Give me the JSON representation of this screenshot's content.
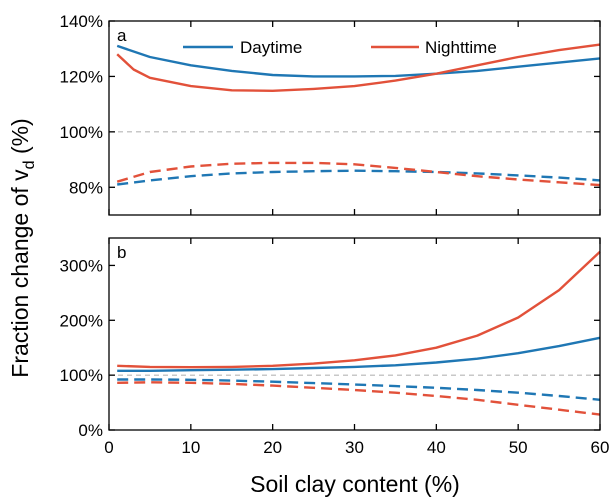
{
  "chart_data": {
    "type": "line",
    "xlabel": "Soil clay content (%)",
    "ylabel": "Fraction change of v",
    "ylabel_subscript": "d",
    "ylabel_suffix": " (%)",
    "x_ticks": [
      0,
      10,
      20,
      30,
      40,
      50,
      60
    ],
    "xlim": [
      0,
      60
    ],
    "colors": {
      "daytime": "#1f77b4",
      "nighttime": "#e2513a",
      "reference": "#b5b5b5"
    },
    "legend": {
      "placement": "top-center",
      "entries": [
        {
          "name": "Daytime",
          "color": "#1f77b4"
        },
        {
          "name": "Nighttime",
          "color": "#e2513a"
        }
      ]
    },
    "panels": [
      {
        "label": "a",
        "ylim": [
          70,
          140
        ],
        "y_ticks": [
          80,
          100,
          120,
          140
        ],
        "y_tick_labels": [
          "80%",
          "100%",
          "120%",
          "140%"
        ],
        "reference_y": 100,
        "series": [
          {
            "name": "Daytime",
            "style": "solid",
            "color": "#1f77b4",
            "x": [
              1,
              5,
              10,
              15,
              20,
              25,
              30,
              35,
              40,
              45,
              50,
              55,
              60
            ],
            "y": [
              131,
              127,
              124,
              122,
              120.5,
              120,
              120,
              120.2,
              121,
              122,
              123.5,
              125,
              126.5
            ]
          },
          {
            "name": "Nighttime",
            "style": "solid",
            "color": "#e2513a",
            "x": [
              1,
              3,
              5,
              10,
              15,
              20,
              25,
              30,
              35,
              40,
              45,
              50,
              55,
              60
            ],
            "y": [
              128,
              122.5,
              119.5,
              116.5,
              115,
              114.8,
              115.5,
              116.5,
              118.5,
              121,
              124,
              127,
              129.5,
              131.5
            ]
          },
          {
            "name": "Daytime",
            "style": "dashed",
            "color": "#1f77b4",
            "x": [
              1,
              5,
              10,
              15,
              20,
              25,
              30,
              35,
              40,
              45,
              50,
              55,
              60
            ],
            "y": [
              81,
              82.5,
              84,
              85,
              85.5,
              85.8,
              86,
              85.8,
              85.5,
              85,
              84.3,
              83.5,
              82.5
            ]
          },
          {
            "name": "Nighttime",
            "style": "dashed",
            "color": "#e2513a",
            "x": [
              1,
              5,
              10,
              15,
              20,
              25,
              30,
              35,
              40,
              45,
              50,
              55,
              60
            ],
            "y": [
              82,
              85.5,
              87.5,
              88.5,
              88.8,
              88.8,
              88.3,
              87,
              85.5,
              84,
              82.8,
              81.8,
              80.8
            ]
          }
        ]
      },
      {
        "label": "b",
        "ylim": [
          0,
          350
        ],
        "y_ticks": [
          0,
          100,
          200,
          300
        ],
        "y_tick_labels": [
          "0%",
          "100%",
          "200%",
          "300%"
        ],
        "reference_y": 100,
        "series": [
          {
            "name": "Daytime",
            "style": "solid",
            "color": "#1f77b4",
            "x": [
              1,
              5,
              10,
              15,
              20,
              25,
              30,
              35,
              40,
              45,
              50,
              55,
              60
            ],
            "y": [
              108,
              108,
              109,
              110,
              111,
              113,
              115,
              118,
              123,
              130,
              140,
              153,
              168
            ]
          },
          {
            "name": "Nighttime",
            "style": "solid",
            "color": "#e2513a",
            "x": [
              1,
              5,
              10,
              15,
              20,
              25,
              30,
              35,
              40,
              45,
              50,
              55,
              60
            ],
            "y": [
              117,
              115,
              114.5,
              115,
              117,
              121,
              127,
              136,
              150,
              172,
              205,
              255,
              325
            ]
          },
          {
            "name": "Daytime",
            "style": "dashed",
            "color": "#1f77b4",
            "x": [
              1,
              5,
              10,
              15,
              20,
              25,
              30,
              35,
              40,
              45,
              50,
              55,
              60
            ],
            "y": [
              92,
              92,
              91.5,
              90,
              88,
              85.5,
              83,
              80,
              77,
              73,
              68,
              62,
              55
            ]
          },
          {
            "name": "Nighttime",
            "style": "dashed",
            "color": "#e2513a",
            "x": [
              1,
              5,
              10,
              15,
              20,
              25,
              30,
              35,
              40,
              45,
              50,
              55,
              60
            ],
            "y": [
              86,
              87,
              86,
              84,
              81,
              77,
              73,
              68,
              62,
              55,
              46,
              37,
              28
            ]
          }
        ]
      }
    ]
  }
}
